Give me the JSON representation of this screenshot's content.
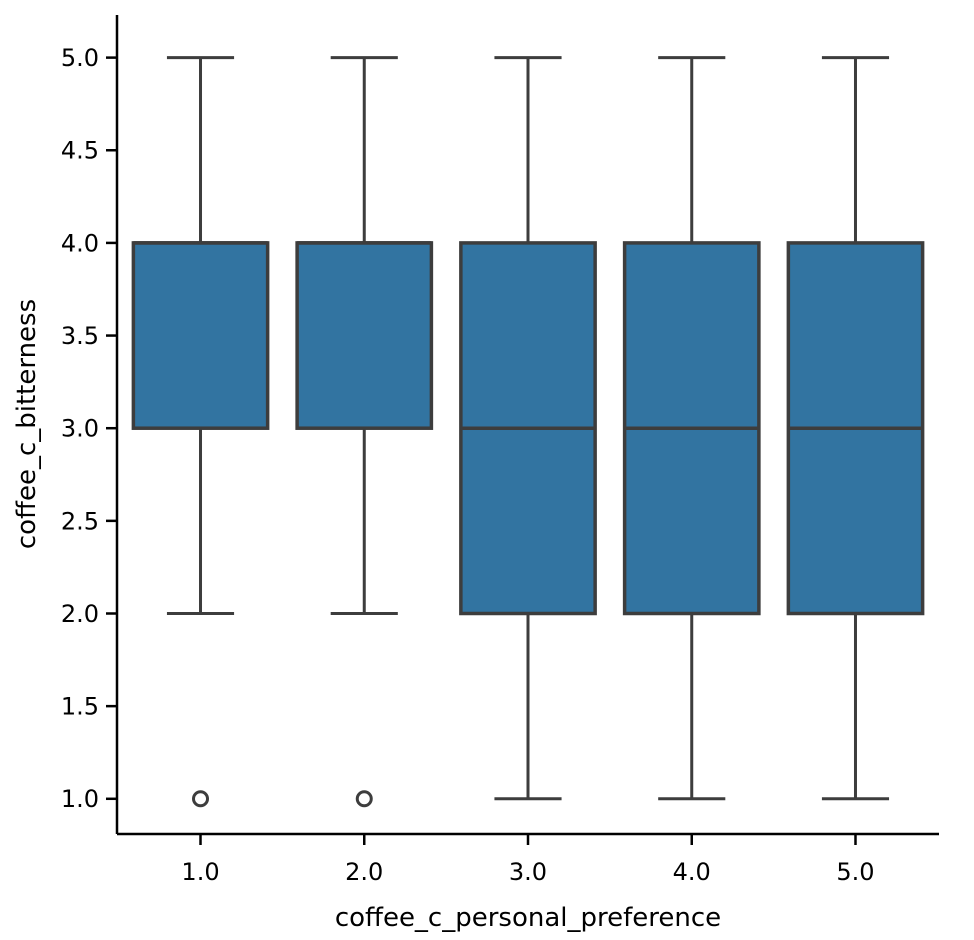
{
  "figure": {
    "background": "#ffffff"
  },
  "chart_data": {
    "type": "boxplot",
    "title": "",
    "xlabel": "coffee_c_personal_preference",
    "ylabel": "coffee_c_bitterness",
    "x_tick_labels": [
      "1.0",
      "2.0",
      "3.0",
      "4.0",
      "5.0"
    ],
    "x_tick_values": [
      1,
      2,
      3,
      4,
      5
    ],
    "y_tick_labels": [
      "1.0",
      "1.5",
      "2.0",
      "2.5",
      "3.0",
      "3.5",
      "4.0",
      "4.5",
      "5.0"
    ],
    "y_tick_values": [
      1,
      1.5,
      2,
      2.5,
      3,
      3.5,
      4,
      4.5,
      5
    ],
    "xlim": [
      0.49,
      5.51
    ],
    "ylim": [
      0.81,
      5.23
    ],
    "grid": false,
    "legend": null,
    "box_width": 0.82,
    "cap_width": 0.41,
    "series": [
      {
        "x": 1,
        "whisker_low": 2,
        "q1": 3,
        "median": 4,
        "q3": 4,
        "whisker_high": 5,
        "outliers": [
          1
        ]
      },
      {
        "x": 2,
        "whisker_low": 2,
        "q1": 3,
        "median": 4,
        "q3": 4,
        "whisker_high": 5,
        "outliers": [
          1
        ]
      },
      {
        "x": 3,
        "whisker_low": 1,
        "q1": 2,
        "median": 3,
        "q3": 4,
        "whisker_high": 5,
        "outliers": []
      },
      {
        "x": 4,
        "whisker_low": 1,
        "q1": 2,
        "median": 3,
        "q3": 4,
        "whisker_high": 5,
        "outliers": []
      },
      {
        "x": 5,
        "whisker_low": 1,
        "q1": 2,
        "median": 3,
        "q3": 4,
        "whisker_high": 5,
        "outliers": []
      }
    ],
    "colors": {
      "box_fill": "#3274a1",
      "box_edge": "#3d3d3d",
      "spine": "#000000",
      "text": "#000000",
      "background": "#ffffff"
    }
  }
}
